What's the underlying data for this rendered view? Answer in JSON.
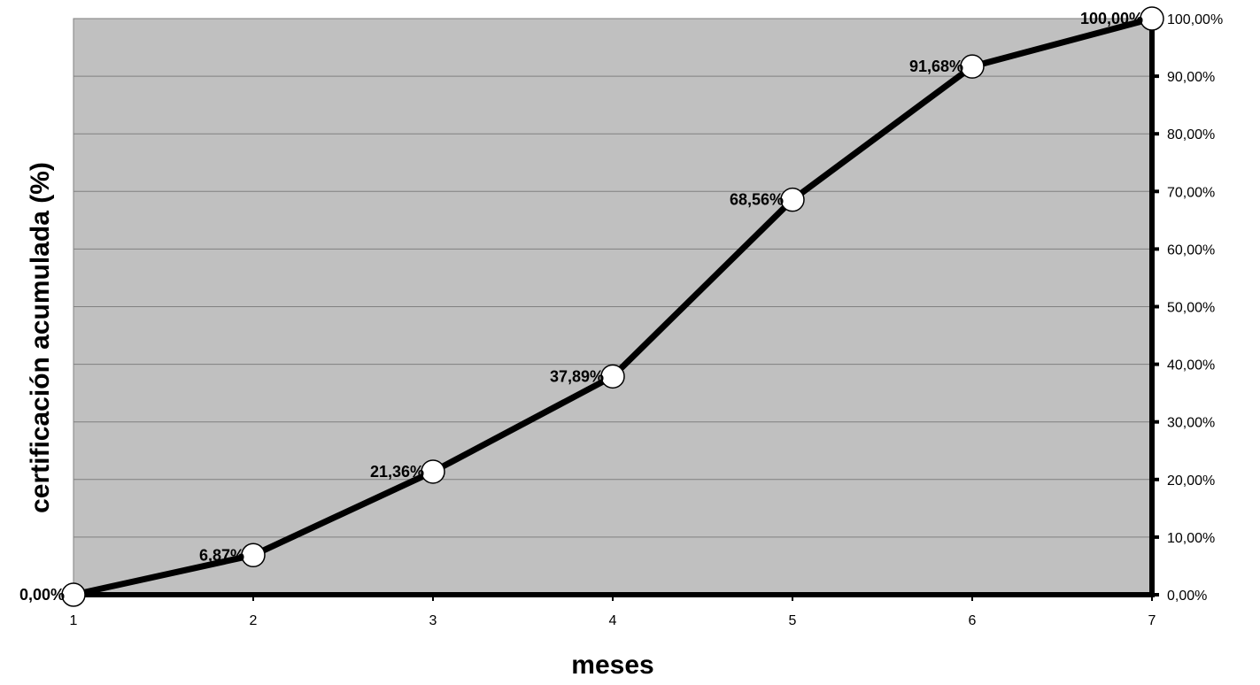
{
  "chart_data": {
    "type": "line",
    "title": "",
    "xlabel": "meses",
    "ylabel": "certificación acumulada (%)",
    "x": [
      1,
      2,
      3,
      4,
      5,
      6,
      7
    ],
    "x_tick_labels": [
      "1",
      "2",
      "3",
      "4",
      "5",
      "6",
      "7"
    ],
    "ylim": [
      0,
      100
    ],
    "y_ticks": [
      0,
      10,
      20,
      30,
      40,
      50,
      60,
      70,
      80,
      90,
      100
    ],
    "y_tick_labels": [
      "0,00%",
      "10,00%",
      "20,00%",
      "30,00%",
      "40,00%",
      "50,00%",
      "60,00%",
      "70,00%",
      "80,00%",
      "90,00%",
      "100,00%"
    ],
    "y_axis_position": "right",
    "grid": true,
    "legend": "none",
    "series": [
      {
        "values": [
          0,
          6.87,
          21.36,
          37.89,
          68.56,
          91.68,
          100
        ],
        "data_labels": [
          "0,00%",
          "6,87%",
          "21,36%",
          "37,89%",
          "68,56%",
          "91,68%",
          "100,00%"
        ]
      }
    ],
    "colors": {
      "plot_background": "#c0c0c0",
      "gridline": "#808080",
      "line": "#000000",
      "marker_fill": "#ffffff",
      "marker_stroke": "#000000"
    }
  }
}
